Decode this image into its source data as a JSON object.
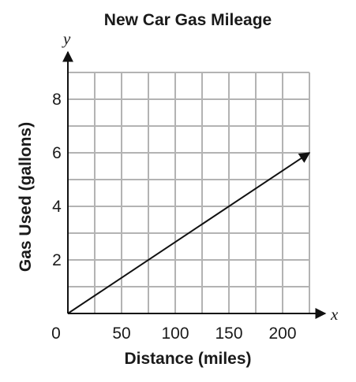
{
  "chart_data": {
    "type": "line",
    "title": "New Car Gas Mileage",
    "xlabel": "Distance (miles)",
    "ylabel": "Gas Used (gallons)",
    "x_axis_variable": "x",
    "y_axis_variable": "y",
    "xlim": [
      0,
      225
    ],
    "ylim": [
      0,
      9
    ],
    "x_grid_step": 25,
    "y_grid_step": 1,
    "x_ticks": [
      0,
      50,
      100,
      150,
      200
    ],
    "x_tick_labels": [
      "0",
      "50",
      "100",
      "150",
      "200"
    ],
    "y_ticks": [
      2,
      4,
      6,
      8
    ],
    "y_tick_labels": [
      "2",
      "4",
      "6",
      "8"
    ],
    "origin_label": "0",
    "grid": true,
    "series": [
      {
        "x": [
          0,
          225
        ],
        "y": [
          0,
          6
        ],
        "arrow_end": true,
        "color": "#111111"
      }
    ]
  }
}
